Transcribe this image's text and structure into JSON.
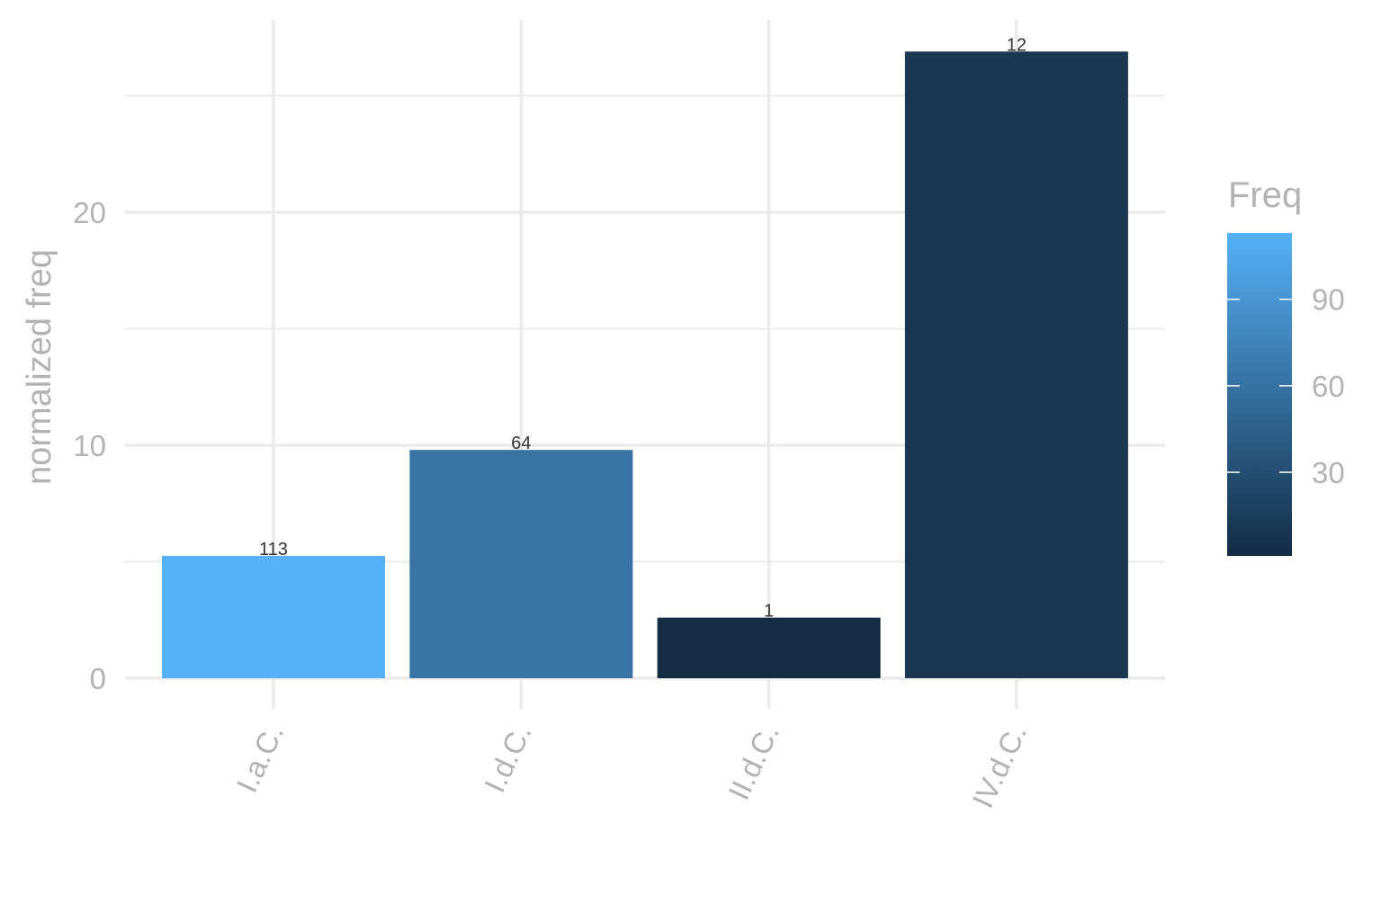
{
  "chart_data": {
    "type": "bar",
    "categories": [
      "I.a.C.",
      "I.d.C.",
      "II.d.C.",
      "IV.d.C."
    ],
    "values": [
      5.25,
      9.8,
      2.6,
      26.9
    ],
    "bar_labels": [
      "113",
      "64",
      "1",
      "12"
    ],
    "freq": [
      113,
      64,
      1,
      12
    ],
    "colors": [
      "#56b1f7",
      "#3873a4",
      "#132b43",
      "#1b3752"
    ],
    "ylabel": "normalized freq",
    "xlabel": "",
    "ylim": [
      0,
      28
    ],
    "yticks": [
      0,
      10,
      20
    ],
    "yticks_labels": [
      "0",
      "10",
      "20"
    ],
    "grid": true,
    "legend": {
      "title": "Freq",
      "position": "right",
      "type": "colorbar",
      "range": [
        1,
        113
      ],
      "ticks": [
        30,
        60,
        90
      ],
      "tick_labels": [
        "30",
        "60",
        "90"
      ],
      "color_low": "#132b43",
      "color_high": "#56b1f7"
    }
  }
}
